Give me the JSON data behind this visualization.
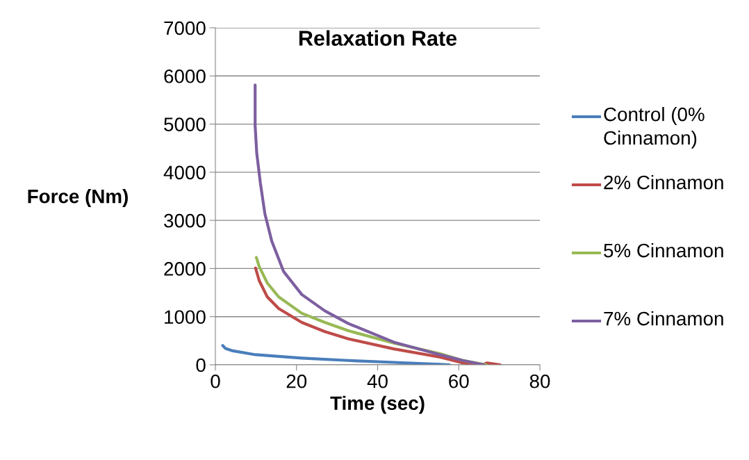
{
  "chart_data": {
    "type": "line",
    "title": "Relaxation Rate",
    "xlabel": "Time (sec)",
    "ylabel": "Force (Nm)",
    "xlim": [
      0,
      80
    ],
    "xticks": [
      0,
      20,
      40,
      60,
      80
    ],
    "ylim": [
      0,
      7000
    ],
    "yticks": [
      0,
      1000,
      2000,
      3000,
      4000,
      5000,
      6000,
      7000
    ],
    "grid": "y",
    "legend": "right",
    "marker": "none",
    "line_style": "solid",
    "series": [
      {
        "name": "Control (0% Cinnamon)",
        "color": "#4a7ebb",
        "x": [
          1.8,
          2.5,
          4.3,
          9.9,
          21.3,
          32.7,
          44,
          55.4,
          57.7
        ],
        "values": [
          400,
          340,
          290,
          210,
          140,
          90,
          50,
          10,
          0
        ]
      },
      {
        "name": "2% Cinnamon",
        "color": "#be4b48",
        "x": [
          9.9,
          10.8,
          12.8,
          15.6,
          21.3,
          27,
          32.7,
          44,
          55.4,
          61,
          63.9,
          66,
          67,
          70.2
        ],
        "values": [
          2010,
          1750,
          1410,
          1170,
          880,
          690,
          540,
          330,
          160,
          40,
          0,
          0,
          40,
          0
        ]
      },
      {
        "name": "5% Cinnamon",
        "color": "#98b954",
        "x": [
          10.1,
          10.8,
          12.8,
          15.6,
          21.3,
          27,
          32.7,
          44,
          55.4,
          61,
          66.8
        ],
        "values": [
          2230,
          2040,
          1700,
          1410,
          1070,
          880,
          710,
          450,
          230,
          90,
          0
        ]
      },
      {
        "name": "7% Cinnamon",
        "color": "#7d5fa0",
        "x": [
          9.8,
          9.8,
          10.2,
          11.1,
          12.2,
          13.9,
          16.8,
          21.3,
          27,
          32.7,
          44,
          55.4,
          61,
          66.2
        ],
        "values": [
          5810,
          4970,
          4390,
          3770,
          3140,
          2570,
          1940,
          1460,
          1120,
          860,
          470,
          210,
          90,
          0
        ]
      }
    ]
  }
}
